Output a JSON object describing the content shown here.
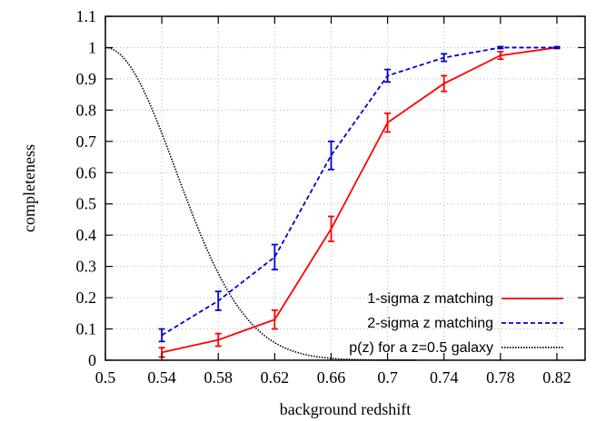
{
  "chart_data": {
    "type": "line",
    "title": "",
    "xlabel": "background redshift",
    "ylabel": "completeness",
    "xlim": [
      0.5,
      0.84
    ],
    "ylim": [
      0,
      1.1
    ],
    "xticks": [
      "0.5",
      "0.54",
      "0.58",
      "0.62",
      "0.66",
      "0.7",
      "0.74",
      "0.78",
      "0.82"
    ],
    "yticks": [
      "0",
      "0.1",
      "0.2",
      "0.3",
      "0.4",
      "0.5",
      "0.6",
      "0.7",
      "0.8",
      "0.9",
      "1",
      "1.1"
    ],
    "grid": true,
    "legend_position": "bottom-right",
    "series": [
      {
        "name": "1-sigma z matching",
        "color": "#ff0000",
        "style": "solid",
        "x": [
          0.54,
          0.58,
          0.62,
          0.66,
          0.7,
          0.74,
          0.78,
          0.82
        ],
        "y": [
          0.025,
          0.065,
          0.13,
          0.42,
          0.76,
          0.885,
          0.975,
          1.0
        ],
        "err": [
          0.015,
          0.02,
          0.03,
          0.04,
          0.03,
          0.025,
          0.012,
          0.003
        ]
      },
      {
        "name": "2-sigma z matching",
        "color": "#0000d0",
        "style": "dashed",
        "x": [
          0.54,
          0.58,
          0.62,
          0.66,
          0.7,
          0.74,
          0.78,
          0.82
        ],
        "y": [
          0.08,
          0.19,
          0.33,
          0.655,
          0.91,
          0.968,
          1.0,
          1.0
        ],
        "err": [
          0.02,
          0.03,
          0.04,
          0.045,
          0.02,
          0.012,
          0.003,
          0.002
        ]
      },
      {
        "name": "p(z) for a z=0.5 galaxy",
        "color": "#000000",
        "style": "dotted",
        "function": "gaussian",
        "mean": 0.5,
        "sigma": 0.05,
        "amplitude": 1.0
      }
    ]
  }
}
